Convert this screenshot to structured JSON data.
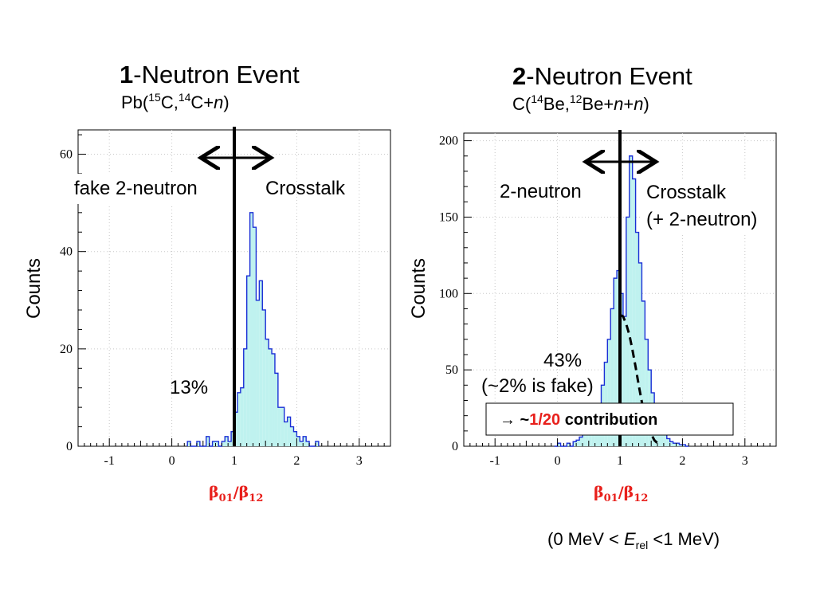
{
  "colors": {
    "histogram_fill": "#bff2ef",
    "histogram_line": "#1a2fd6",
    "accent_red": "#e8201c",
    "line": "#000000"
  },
  "left_header": {
    "title_number": "1",
    "title_rest": "-Neutron Event",
    "reaction": {
      "open": "Pb(",
      "sup1": "15",
      "mid1": "C,",
      "sup2": "14",
      "mid2": "C+",
      "italic": "n",
      "close": ")"
    }
  },
  "right_header": {
    "title_number": "2",
    "title_rest": "-Neutron Event",
    "reaction": {
      "open": "C(",
      "sup1": "14",
      "mid1": "Be,",
      "sup2": "12",
      "mid2": "Be+",
      "italic1": "n",
      "plus": "+",
      "italic2": "n",
      "close": ")"
    }
  },
  "left_annotations": {
    "left_label": "fake 2-neutron",
    "right_label": "Crosstalk",
    "percent": "13%"
  },
  "right_annotations": {
    "left_label": "2-neutron",
    "right_label_1": "Crosstalk",
    "right_label_2": "(+ 2-neutron)",
    "percent": "43%",
    "fake_note": "(~2% is fake)"
  },
  "contribution_box": {
    "prefix": "→ ~",
    "fraction": "1/20",
    "suffix": " contribution"
  },
  "energy_range": {
    "prefix": "(0 MeV < ",
    "var": "E",
    "sub": "rel",
    "suffix": " <1 MeV)"
  },
  "chart_data": [
    {
      "type": "histogram",
      "ylabel": "Counts",
      "xlabel": {
        "b1": "β",
        "s1": "01",
        "slash": "/",
        "b2": "β",
        "s2": "12"
      },
      "xlim": [
        -1.5,
        3.5
      ],
      "ylim": [
        0,
        65
      ],
      "xticks": [
        -1,
        0,
        1,
        2,
        3
      ],
      "yticks": [
        0,
        20,
        40,
        60
      ],
      "grid": true,
      "cut_line_x": 1.0,
      "bin_width": 0.05,
      "bin_start": 0.25,
      "counts": [
        1,
        0,
        0,
        1,
        0,
        0,
        2,
        0,
        1,
        1,
        0,
        1,
        2,
        1,
        3,
        7,
        11,
        12,
        20,
        35,
        48,
        45,
        30,
        34,
        28,
        22,
        20,
        19,
        15,
        8,
        8,
        5,
        6,
        4,
        3,
        2,
        1,
        2,
        1,
        0,
        0,
        1
      ],
      "stats_box": false
    },
    {
      "type": "histogram",
      "ylabel": "Counts",
      "xlabel": {
        "b1": "β",
        "s1": "01",
        "slash": "/",
        "b2": "β",
        "s2": "12"
      },
      "xlim": [
        -1.5,
        3.5
      ],
      "ylim": [
        0,
        205
      ],
      "xticks": [
        -1,
        0,
        1,
        2,
        3
      ],
      "yticks": [
        0,
        50,
        100,
        150,
        200
      ],
      "grid": true,
      "cut_line_x": 1.0,
      "bin_width": 0.05,
      "bin_start": -0.05,
      "counts": [
        0,
        2,
        0,
        0,
        2,
        0,
        3,
        4,
        6,
        8,
        12,
        14,
        16,
        20,
        28,
        40,
        55,
        70,
        90,
        110,
        115,
        100,
        85,
        150,
        190,
        175,
        140,
        120,
        95,
        70,
        50,
        35,
        25,
        18,
        12,
        8,
        5,
        3,
        2,
        2,
        1,
        1,
        0
      ],
      "fit_curve": [
        [
          1.0,
          86
        ],
        [
          1.05,
          85
        ],
        [
          1.1,
          80
        ],
        [
          1.15,
          73
        ],
        [
          1.2,
          63
        ],
        [
          1.25,
          52
        ],
        [
          1.3,
          40
        ],
        [
          1.35,
          29
        ],
        [
          1.4,
          20
        ],
        [
          1.45,
          13
        ],
        [
          1.5,
          8
        ],
        [
          1.55,
          4
        ],
        [
          1.6,
          2
        ],
        [
          1.65,
          0.5
        ]
      ]
    }
  ]
}
